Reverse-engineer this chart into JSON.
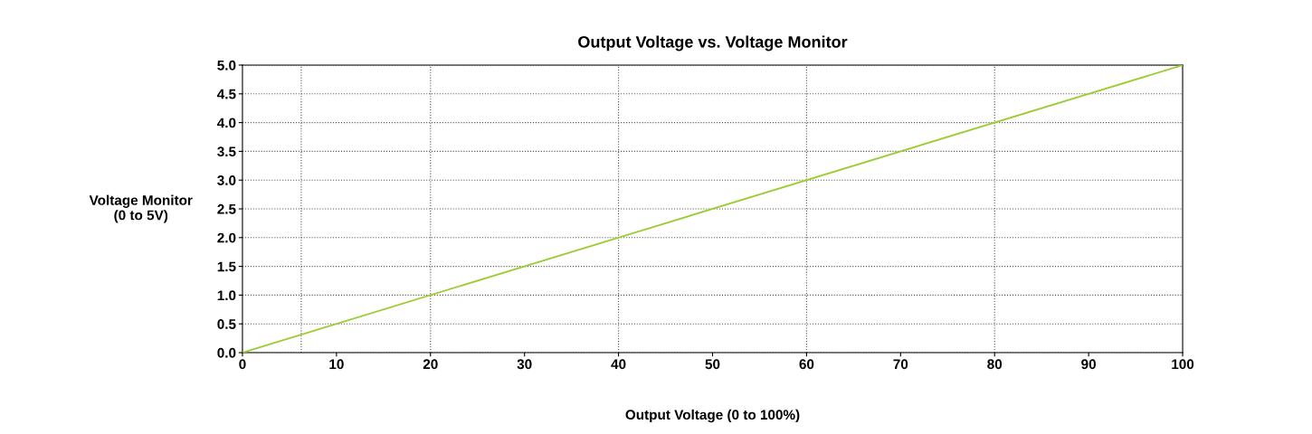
{
  "chart_data": {
    "type": "line",
    "title": "Output Voltage vs. Voltage Monitor",
    "xlabel": "Output Voltage (0 to 100%)",
    "ylabel": "Voltage Monitor\n(0 to 5V)",
    "x": [
      0,
      100
    ],
    "series": [
      {
        "color": "#9acd32",
        "values": [
          0,
          5
        ]
      }
    ],
    "xlim": [
      0,
      100
    ],
    "xticks": [
      0,
      10,
      20,
      30,
      40,
      50,
      60,
      70,
      80,
      90,
      100
    ],
    "ylim": [
      0,
      5
    ],
    "yticks": [
      {
        "value": 0,
        "label": "0.0"
      },
      {
        "value": 0.5,
        "label": "0.5"
      },
      {
        "value": 1,
        "label": "1.0"
      },
      {
        "value": 1.5,
        "label": "1.5"
      },
      {
        "value": 2,
        "label": "2.0"
      },
      {
        "value": 2.5,
        "label": "2.5"
      },
      {
        "value": 3,
        "label": "3.0"
      },
      {
        "value": 3.5,
        "label": "3.5"
      },
      {
        "value": 4,
        "label": "4.0"
      },
      {
        "value": 4.5,
        "label": "4.5"
      },
      {
        "value": 5,
        "label": "5.0"
      }
    ],
    "grid": "y",
    "ref_lines": [
      {
        "axis": "x",
        "value": 6.25,
        "color": "#555555",
        "line_style": "dotted"
      },
      {
        "axis": "x",
        "value": 20,
        "color": "#555555",
        "line_style": "dotted"
      },
      {
        "axis": "x",
        "value": 40,
        "color": "#555555",
        "line_style": "dotted"
      },
      {
        "axis": "x",
        "value": 60,
        "color": "#555555",
        "line_style": "dotted"
      },
      {
        "axis": "x",
        "value": 80,
        "color": "#555555",
        "line_style": "dotted"
      }
    ],
    "marker": "none",
    "line_style": "solid",
    "legend": false
  }
}
